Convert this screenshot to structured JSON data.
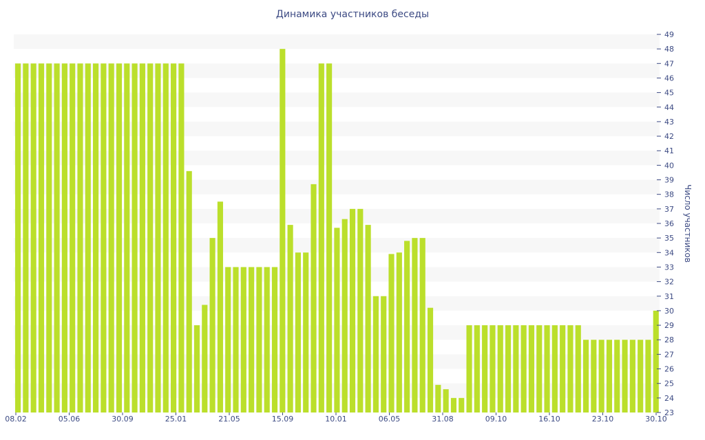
{
  "chart_data": {
    "type": "bar",
    "title": "Динамика участников беседы",
    "ylabel": "Число участников",
    "xlabel": "",
    "ylim": [
      23,
      49
    ],
    "y_axis_position": "right",
    "grid": "horizontal-bands",
    "bar_color": "#bbdf2b",
    "band_color": "#f7f7f7",
    "text_color": "#3c4a83",
    "x_tick_labels": [
      "08.02",
      "05.06",
      "30.09",
      "25.01",
      "21.05",
      "15.09",
      "10.01",
      "06.05",
      "31.08",
      "09.10",
      "16.10",
      "23.10",
      "30.10"
    ],
    "y_ticks": [
      23,
      24,
      25,
      26,
      27,
      28,
      29,
      30,
      31,
      32,
      33,
      34,
      35,
      36,
      37,
      38,
      39,
      40,
      41,
      42,
      43,
      44,
      45,
      46,
      47,
      48,
      49
    ],
    "values": [
      47,
      47,
      47,
      47,
      47,
      47,
      47,
      47,
      47,
      47,
      47,
      47,
      47,
      47,
      47,
      47,
      47,
      47,
      47,
      47,
      47,
      47,
      39.6,
      29,
      30.4,
      35,
      37.5,
      33,
      33,
      33,
      33,
      33,
      33,
      33,
      48,
      35.9,
      34,
      34,
      38.7,
      47,
      47,
      35.7,
      36.3,
      37,
      37,
      35.9,
      31,
      31,
      33.9,
      34,
      34.8,
      35,
      35,
      30.2,
      24.9,
      24.6,
      24,
      24,
      29,
      29,
      29,
      29,
      29,
      29,
      29,
      29,
      29,
      29,
      29,
      29,
      29,
      29,
      29,
      28,
      28,
      28,
      28,
      28,
      28,
      28,
      28,
      28,
      30
    ]
  }
}
